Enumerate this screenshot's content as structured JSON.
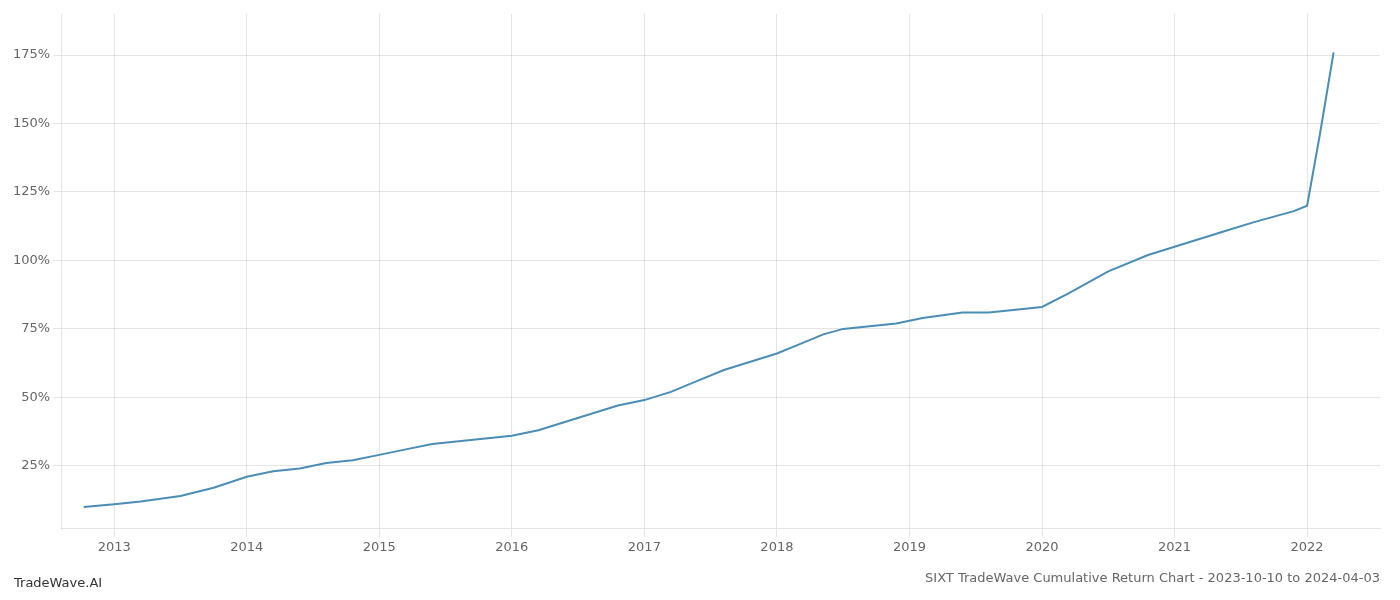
{
  "chart_data": {
    "type": "line",
    "title": "SIXT TradeWave Cumulative Return Chart - 2023-10-10 to 2024-04-03",
    "annotations": [
      {
        "text": "TradeWave.AI"
      }
    ],
    "x": [
      2012.77,
      2013.0,
      2013.2,
      2013.5,
      2013.75,
      2014.0,
      2014.2,
      2014.4,
      2014.6,
      2014.8,
      2015.0,
      2015.2,
      2015.4,
      2015.6,
      2015.8,
      2016.0,
      2016.2,
      2016.4,
      2016.6,
      2016.8,
      2017.0,
      2017.2,
      2017.4,
      2017.6,
      2017.8,
      2018.0,
      2018.2,
      2018.35,
      2018.5,
      2018.7,
      2018.9,
      2019.1,
      2019.25,
      2019.4,
      2019.6,
      2019.8,
      2020.0,
      2020.2,
      2020.5,
      2020.8,
      2021.0,
      2021.2,
      2021.4,
      2021.6,
      2021.75,
      2021.9,
      2022.0,
      2022.1,
      2022.2
    ],
    "values": [
      10,
      11,
      12,
      14,
      17,
      21,
      23,
      24,
      26,
      27,
      29,
      31,
      33,
      34,
      35,
      36,
      38,
      41,
      44,
      47,
      49,
      52,
      56,
      60,
      63,
      66,
      70,
      73,
      75,
      76,
      77,
      79,
      80,
      81,
      81,
      82,
      83,
      88,
      96,
      102,
      105,
      108,
      111,
      114,
      116,
      118,
      120,
      147,
      176
    ],
    "color": "#4a8db5",
    "xlim": [
      2012.6,
      2022.55
    ],
    "xticks": [
      2013,
      2014,
      2015,
      2016,
      2017,
      2018,
      2019,
      2020,
      2021,
      2022
    ],
    "ylim": [
      2,
      190
    ],
    "yticks": [
      {
        "value": 25,
        "label": "25%"
      },
      {
        "value": 50,
        "label": "50%"
      },
      {
        "value": 75,
        "label": "75%"
      },
      {
        "value": 100,
        "label": "100%"
      },
      {
        "value": 125,
        "label": "125%"
      },
      {
        "value": 150,
        "label": "150%"
      },
      {
        "value": 175,
        "label": "175%"
      }
    ],
    "grid": true
  }
}
